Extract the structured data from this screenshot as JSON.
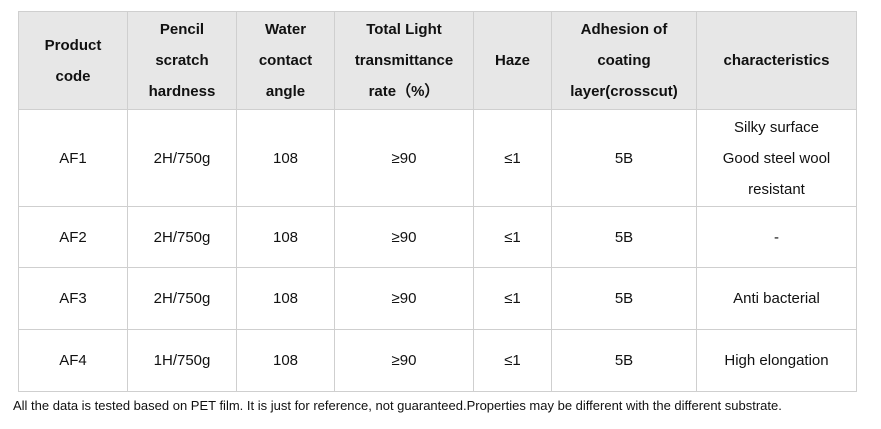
{
  "table": {
    "headers": [
      [
        "Product",
        "code"
      ],
      [
        "Pencil",
        "scratch",
        "hardness"
      ],
      [
        "Water",
        "contact",
        "angle"
      ],
      [
        "Total Light",
        "transmittance",
        "rate（%）"
      ],
      [
        "Haze"
      ],
      [
        "Adhesion of",
        "coating",
        "layer(crosscut)"
      ],
      [
        "characteristics"
      ]
    ],
    "rows": [
      {
        "code": "AF1",
        "hardness": "2H/750g",
        "angle": "108",
        "transmittance": "≥90",
        "haze": "≤1",
        "adhesion": "5B",
        "characteristics": [
          "Silky surface",
          "Good steel wool",
          "resistant"
        ]
      },
      {
        "code": "AF2",
        "hardness": "2H/750g",
        "angle": "108",
        "transmittance": "≥90",
        "haze": "≤1",
        "adhesion": "5B",
        "characteristics": [
          "-"
        ]
      },
      {
        "code": "AF3",
        "hardness": "2H/750g",
        "angle": "108",
        "transmittance": "≥90",
        "haze": "≤1",
        "adhesion": "5B",
        "characteristics": [
          "Anti bacterial"
        ]
      },
      {
        "code": "AF4",
        "hardness": "1H/750g",
        "angle": "108",
        "transmittance": "≥90",
        "haze": "≤1",
        "adhesion": "5B",
        "characteristics": [
          "High elongation"
        ]
      }
    ]
  },
  "footnote": "All the data is tested based on PET film. It is just for reference, not guaranteed.Properties may be different with the different substrate."
}
